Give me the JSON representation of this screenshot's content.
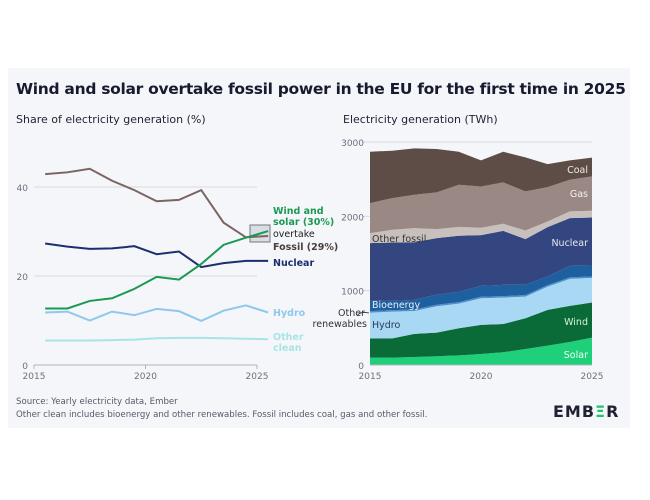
{
  "title": "Wind and solar overtake fossil power in the EU for the first time in 2025",
  "footer": {
    "source": "Source: Yearly electricity data, Ember",
    "note": "Other clean includes bioenergy and other renewables. Fossil includes coal, gas and other fossil.",
    "logo": "EMBER"
  },
  "chart_data": [
    {
      "type": "line",
      "title": "Share of electricity generation (%)",
      "xlim": [
        2015,
        2025
      ],
      "ylim": [
        0,
        40
      ],
      "xticks": [
        "2015",
        "2020",
        "2025"
      ],
      "yticks": [
        "0",
        "20",
        "40"
      ],
      "grid": true,
      "x": [
        2015,
        2016,
        2017,
        2018,
        2019,
        2020,
        2021,
        2022,
        2023,
        2024,
        2025
      ],
      "annotation": "overtake",
      "series": [
        {
          "name": "Fossil (29%)",
          "color": "#7a6560",
          "values": [
            42.9,
            43.3,
            44.1,
            41.4,
            39.3,
            36.8,
            37.1,
            39.3,
            32.0,
            28.7,
            29.0
          ]
        },
        {
          "name": "Wind and solar (30%)",
          "color": "#1a9a50",
          "values": [
            12.7,
            12.7,
            14.4,
            15.0,
            17.1,
            19.8,
            19.2,
            22.7,
            27.0,
            28.6,
            30.1
          ]
        },
        {
          "name": "Nuclear",
          "color": "#1b2f6e",
          "values": [
            27.3,
            26.6,
            26.1,
            26.2,
            26.7,
            24.9,
            25.5,
            22.0,
            22.9,
            23.4,
            23.4
          ]
        },
        {
          "name": "Hydro",
          "color": "#8ec8ec",
          "values": [
            11.8,
            12.0,
            10.0,
            12.0,
            11.2,
            12.6,
            12.1,
            9.9,
            12.2,
            13.4,
            11.8
          ]
        },
        {
          "name": "Other clean",
          "color": "#a8e4e6",
          "values": [
            5.5,
            5.5,
            5.5,
            5.6,
            5.7,
            6.0,
            6.1,
            6.1,
            6.0,
            5.9,
            5.8
          ]
        }
      ]
    },
    {
      "type": "area",
      "stacked": true,
      "title": "Electricity generation (TWh)",
      "xlim": [
        2015,
        2025
      ],
      "ylim": [
        0,
        3000
      ],
      "xticks": [
        "2015",
        "2020",
        "2025"
      ],
      "yticks": [
        "0",
        "1000",
        "2000",
        "3000"
      ],
      "grid": true,
      "x": [
        2015,
        2016,
        2017,
        2018,
        2019,
        2020,
        2021,
        2022,
        2023,
        2024,
        2025
      ],
      "series": [
        {
          "name": "Solar",
          "color": "#1fd07a",
          "values": [
            99,
            99,
            108,
            117,
            130,
            148,
            171,
            216,
            260,
            310,
            368
          ]
        },
        {
          "name": "Wind",
          "color": "#0b6b38",
          "values": [
            260,
            260,
            310,
            319,
            364,
            391,
            381,
            413,
            481,
            485,
            472
          ]
        },
        {
          "name": "Hydro",
          "color": "#a8d8f4",
          "values": [
            346,
            359,
            309,
            354,
            332,
            359,
            355,
            291,
            314,
            363,
            332
          ]
        },
        {
          "name": "Other renewables",
          "color": "#4f8fcc",
          "values": [
            20,
            20,
            20,
            20,
            20,
            20,
            20,
            20,
            20,
            20,
            20
          ]
        },
        {
          "name": "Bioenergy",
          "color": "#1e5fa0",
          "values": [
            137,
            124,
            129,
            137,
            137,
            146,
            151,
            142,
            115,
            156,
            146
          ]
        },
        {
          "name": "Nuclear",
          "color": "#34467f",
          "values": [
            777,
            786,
            776,
            759,
            755,
            683,
            727,
            611,
            665,
            642,
            647
          ]
        },
        {
          "name": "Other fossil",
          "color": "#c8c0bc",
          "values": [
            135,
            171,
            189,
            122,
            121,
            99,
            95,
            117,
            76,
            90,
            90
          ]
        },
        {
          "name": "Gas",
          "color": "#9a8885",
          "values": [
            404,
            426,
            449,
            494,
            566,
            556,
            556,
            525,
            462,
            426,
            462
          ]
        },
        {
          "name": "Coal",
          "color": "#5e4d47",
          "values": [
            691,
            638,
            624,
            583,
            444,
            351,
            413,
            458,
            310,
            261,
            252
          ]
        }
      ]
    }
  ]
}
